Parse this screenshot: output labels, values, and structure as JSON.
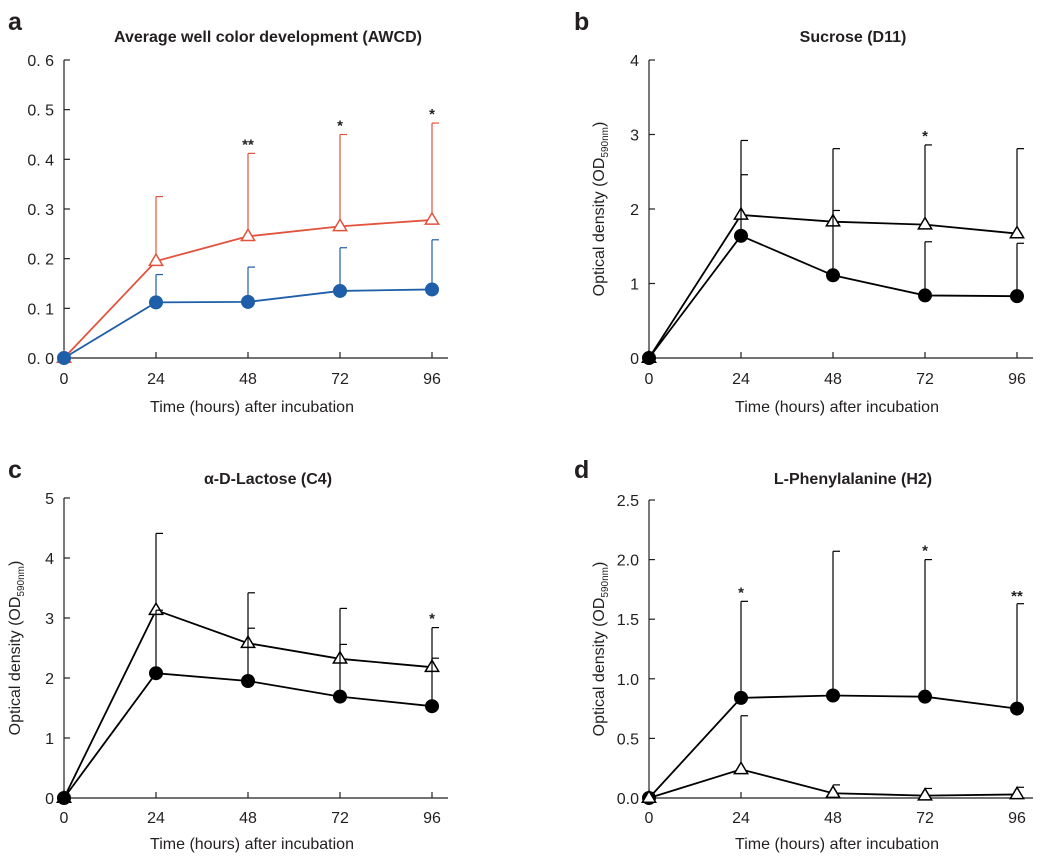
{
  "colors": {
    "axis": "#231f20",
    "red": "#e3523d",
    "blue": "#1f5ea8",
    "black": "#000000"
  },
  "chart_data": [
    {
      "panel": "a",
      "type": "line",
      "title": "Average well color development (AWCD)",
      "xlabel": "Time (hours) after incubation",
      "ylabel": "",
      "x": [
        0,
        24,
        48,
        72,
        96
      ],
      "xlim": [
        0,
        96
      ],
      "ylim": [
        0,
        0.6
      ],
      "yticks": [
        0,
        0.1,
        0.2,
        0.3,
        0.4,
        0.5,
        0.6
      ],
      "ytick_labels": [
        "0. 0",
        "0. 1",
        "0. 2",
        "0. 3",
        "0. 4",
        "0. 5",
        "0. 6"
      ],
      "xticks": [
        0,
        24,
        48,
        72,
        96
      ],
      "xtick_labels": [
        "0",
        "24",
        "48",
        "72",
        "96"
      ],
      "series": [
        {
          "marker": "triangle",
          "color": "#e3523d",
          "values": [
            0,
            0.195,
            0.245,
            0.265,
            0.278
          ],
          "errors": [
            0,
            0.13,
            0.167,
            0.185,
            0.195
          ]
        },
        {
          "marker": "circle",
          "color": "#1f5ea8",
          "values": [
            0,
            0.112,
            0.113,
            0.135,
            0.138
          ],
          "errors": [
            0,
            0.056,
            0.07,
            0.087,
            0.1
          ]
        }
      ],
      "significance": [
        {
          "x": 48,
          "y": 0.412,
          "label": "**"
        },
        {
          "x": 72,
          "y": 0.45,
          "label": "*"
        },
        {
          "x": 96,
          "y": 0.473,
          "label": "*"
        }
      ]
    },
    {
      "panel": "b",
      "type": "line",
      "title": "Sucrose (D11)",
      "xlabel": "Time (hours) after incubation",
      "ylabel": "Optical density (OD",
      "ylabel_sub": "590nm",
      "ylabel_end": ")",
      "x": [
        0,
        24,
        48,
        72,
        96
      ],
      "xlim": [
        0,
        96
      ],
      "ylim": [
        0,
        4
      ],
      "yticks": [
        0,
        1,
        2,
        3,
        4
      ],
      "ytick_labels": [
        "0",
        "1",
        "2",
        "3",
        "4"
      ],
      "xticks": [
        0,
        24,
        48,
        72,
        96
      ],
      "xtick_labels": [
        "0",
        "24",
        "48",
        "72",
        "96"
      ],
      "series": [
        {
          "marker": "triangle",
          "color": "#000000",
          "values": [
            0,
            1.92,
            1.83,
            1.79,
            1.67
          ],
          "errors": [
            0,
            1.0,
            0.98,
            1.07,
            1.14
          ]
        },
        {
          "marker": "circle",
          "color": "#000000",
          "values": [
            0,
            1.64,
            1.11,
            0.84,
            0.83
          ],
          "errors": [
            0,
            0.82,
            0.87,
            0.72,
            0.71
          ]
        }
      ],
      "significance": [
        {
          "x": 72,
          "y": 2.86,
          "label": "*"
        }
      ]
    },
    {
      "panel": "c",
      "type": "line",
      "title": "α-D-Lactose (C4)",
      "xlabel": "Time (hours) after incubation",
      "ylabel": "Optical density (OD",
      "ylabel_sub": "590nm",
      "ylabel_end": ")",
      "x": [
        0,
        24,
        48,
        72,
        96
      ],
      "xlim": [
        0,
        96
      ],
      "ylim": [
        0,
        5
      ],
      "yticks": [
        0,
        1,
        2,
        3,
        4,
        5
      ],
      "ytick_labels": [
        "0",
        "1",
        "2",
        "3",
        "4",
        "5"
      ],
      "xticks": [
        0,
        24,
        48,
        72,
        96
      ],
      "xtick_labels": [
        "0",
        "24",
        "48",
        "72",
        "96"
      ],
      "series": [
        {
          "marker": "triangle",
          "color": "#000000",
          "values": [
            0,
            3.13,
            2.58,
            2.32,
            2.18
          ],
          "errors": [
            0,
            1.28,
            0.84,
            0.84,
            0.66
          ]
        },
        {
          "marker": "circle",
          "color": "#000000",
          "values": [
            0,
            2.08,
            1.95,
            1.69,
            1.53
          ],
          "errors": [
            0,
            1.05,
            0.88,
            0.87,
            0.8
          ]
        }
      ],
      "significance": [
        {
          "x": 96,
          "y": 2.84,
          "label": "*"
        }
      ]
    },
    {
      "panel": "d",
      "type": "line",
      "title": "L-Phenylalanine (H2)",
      "xlabel": "Time (hours) after incubation",
      "ylabel": "Optical density (OD",
      "ylabel_sub": "590nm",
      "ylabel_end": ")",
      "x": [
        0,
        24,
        48,
        72,
        96
      ],
      "xlim": [
        0,
        96
      ],
      "ylim": [
        0,
        2.5
      ],
      "yticks": [
        0,
        0.5,
        1.0,
        1.5,
        2.0,
        2.5
      ],
      "ytick_labels": [
        "0.0",
        "0.5",
        "1.0",
        "1.5",
        "2.0",
        "2.5"
      ],
      "xticks": [
        0,
        24,
        48,
        72,
        96
      ],
      "xtick_labels": [
        "0",
        "24",
        "48",
        "72",
        "96"
      ],
      "series": [
        {
          "marker": "circle",
          "color": "#000000",
          "values": [
            0,
            0.84,
            0.86,
            0.85,
            0.75
          ],
          "errors": [
            0,
            0.81,
            1.21,
            1.15,
            0.88
          ]
        },
        {
          "marker": "triangle",
          "color": "#000000",
          "values": [
            0,
            0.24,
            0.04,
            0.02,
            0.03
          ],
          "errors": [
            0,
            0.45,
            0.07,
            0.06,
            0.06
          ]
        }
      ],
      "significance": [
        {
          "x": 24,
          "y": 1.65,
          "label": "*"
        },
        {
          "x": 72,
          "y": 2.0,
          "label": "*"
        },
        {
          "x": 96,
          "y": 1.62,
          "label": "**"
        }
      ]
    }
  ]
}
